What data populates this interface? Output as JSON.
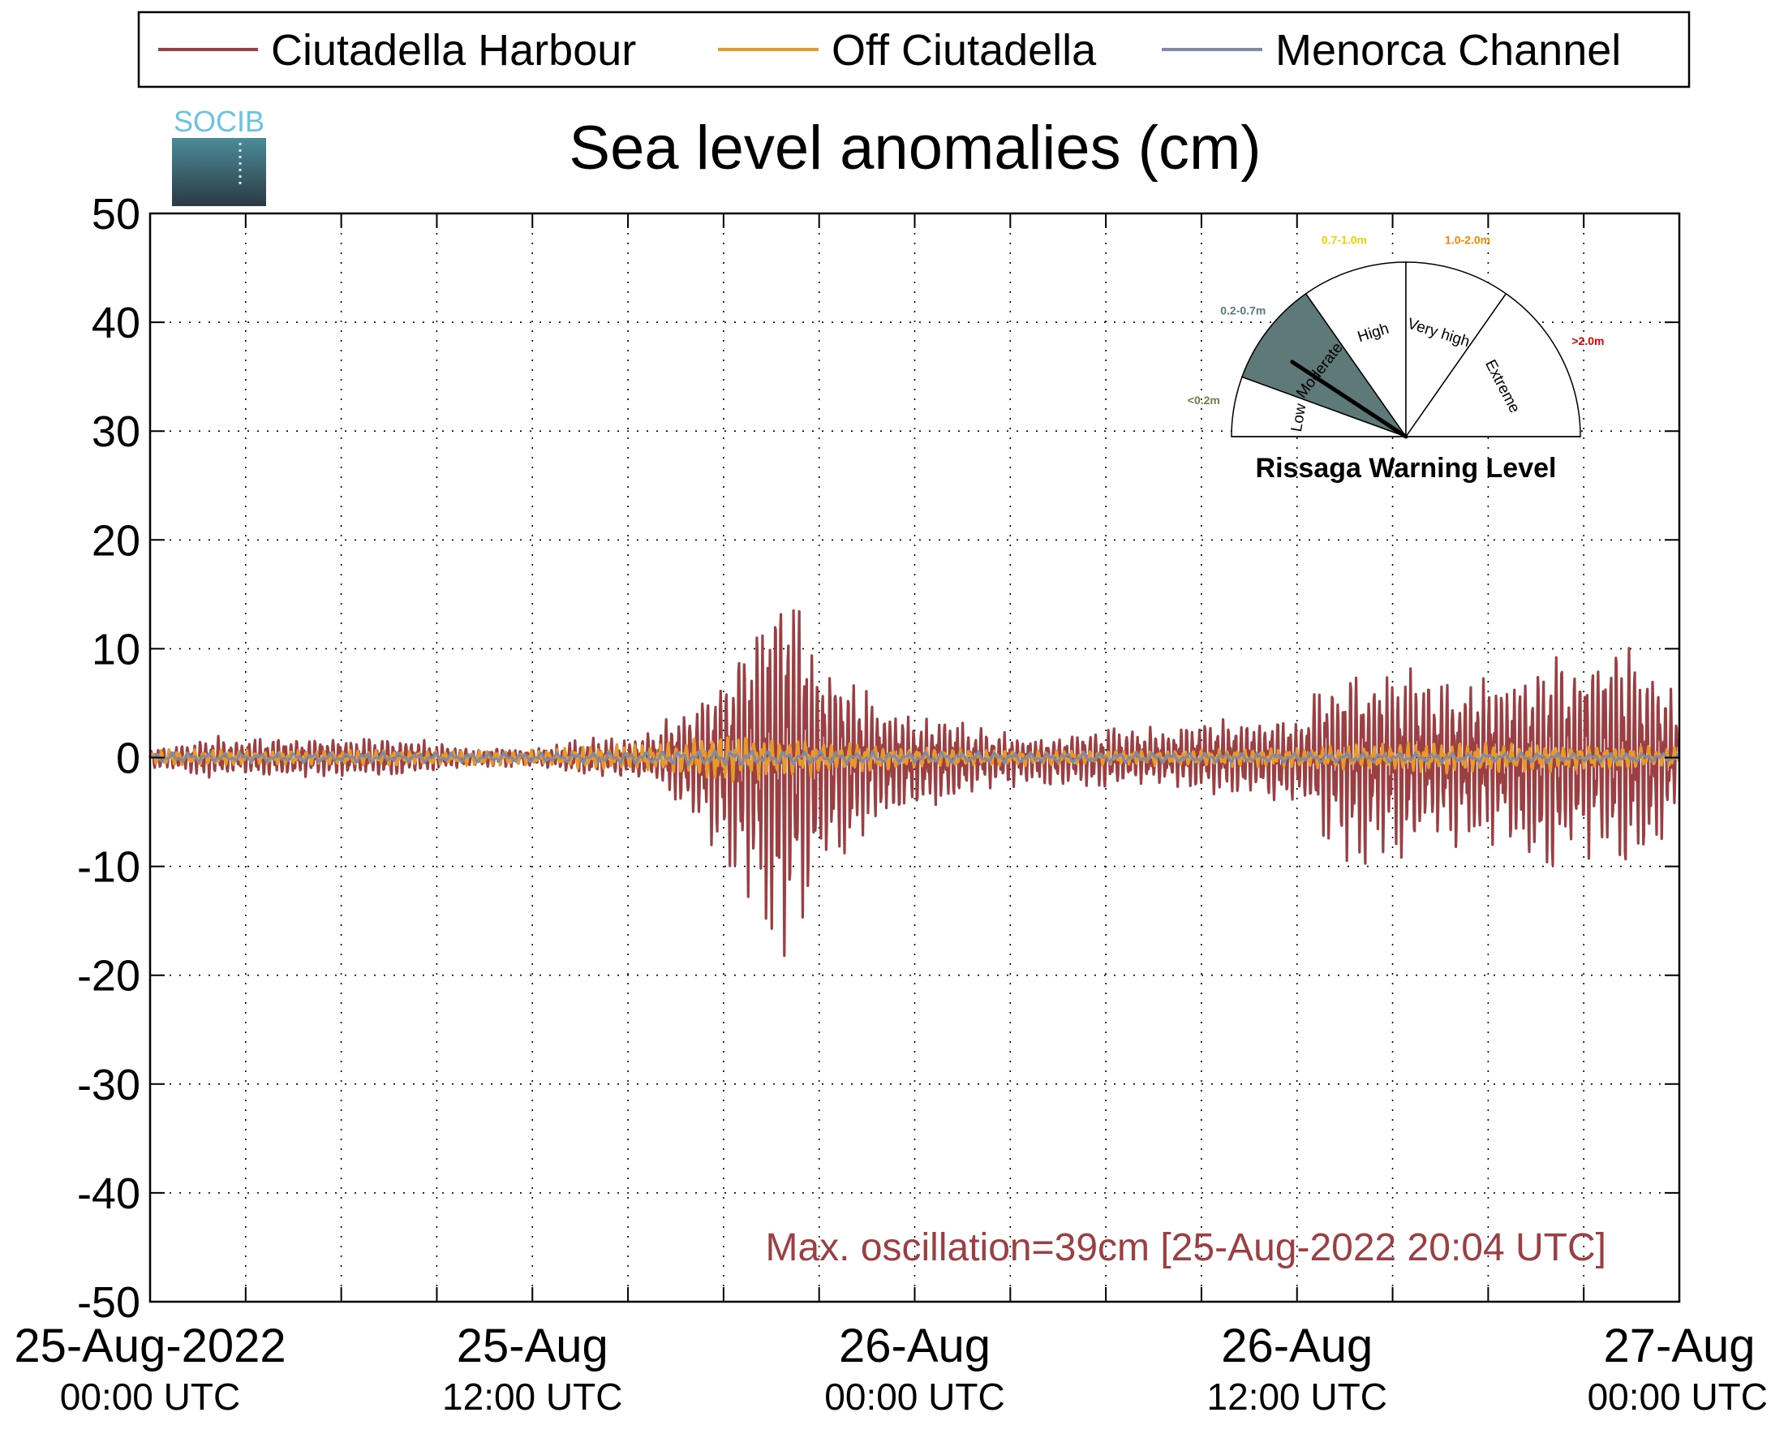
{
  "colors": {
    "harbour": "#9b3f43",
    "off": "#e69a2e",
    "channel": "#7f8aa5",
    "axis": "#000000",
    "grid": "#000000",
    "annotation": "#9b3f43",
    "logo_text": "#6cc3dd",
    "logo_top": "#4d8b98",
    "logo_bottom": "#2b3a45"
  },
  "logo": {
    "text": "SOCIB"
  },
  "chart_data": {
    "type": "line",
    "title": "Sea level anomalies (cm)",
    "xlabel": "",
    "ylabel": "",
    "ylim": [
      -50,
      50
    ],
    "yticks": [
      50,
      40,
      30,
      20,
      10,
      0,
      -10,
      -20,
      -30,
      -40,
      -50
    ],
    "yticklabels": [
      "50",
      "40",
      "30",
      "20",
      "10",
      "0",
      "-10",
      "-20",
      "-30",
      "-40",
      "-50"
    ],
    "x_unit": "hours since 25-Aug-2022 00:00 UTC",
    "xlim_hours": [
      0,
      48
    ],
    "x_gridlines_hours": [
      3,
      6,
      9,
      12,
      15,
      18,
      21,
      24,
      27,
      30,
      33,
      36,
      39,
      42,
      45
    ],
    "xticks": [
      {
        "hours": 0,
        "line1": "25-Aug-2022",
        "line2": "00:00 UTC"
      },
      {
        "hours": 12,
        "line1": "25-Aug",
        "line2": "12:00 UTC"
      },
      {
        "hours": 24,
        "line1": "26-Aug",
        "line2": "00:00 UTC"
      },
      {
        "hours": 36,
        "line1": "26-Aug",
        "line2": "12:00 UTC"
      },
      {
        "hours": 48,
        "line1": "27-Aug",
        "line2": "00:00 UTC"
      }
    ],
    "grid": true,
    "legend": {
      "placement": "top",
      "entries": [
        "Ciutadella Harbour",
        "Off Ciutadella",
        "Menorca Channel"
      ]
    },
    "series": [
      {
        "name": "Ciutadella Harbour",
        "color_key": "harbour",
        "envelope_hours": [
          0,
          2,
          4,
          6,
          8,
          10,
          12,
          14,
          15,
          16,
          17,
          18,
          19,
          20,
          21,
          22,
          23,
          24,
          25,
          26,
          28,
          30,
          32,
          34,
          36,
          37,
          38,
          40,
          42,
          44,
          45,
          46,
          47,
          48
        ],
        "envelope_upper_cm": [
          1,
          2,
          2,
          2,
          2,
          1,
          1,
          2,
          2,
          3,
          6,
          9,
          15,
          19,
          12,
          9,
          6,
          4,
          4,
          3,
          2,
          3,
          3,
          4,
          4,
          8,
          10,
          9,
          8,
          10,
          11,
          12,
          10,
          6
        ],
        "envelope_lower_cm": [
          -1,
          -2,
          -2,
          -2,
          -2,
          -1,
          -1,
          -2,
          -2,
          -3,
          -7,
          -10,
          -16,
          -20,
          -12,
          -10,
          -7,
          -6,
          -5,
          -3,
          -3,
          -3,
          -3,
          -4,
          -5,
          -9,
          -11,
          -9,
          -9,
          -12,
          -10,
          -11,
          -11,
          -5
        ]
      },
      {
        "name": "Off Ciutadella",
        "color_key": "off",
        "envelope_hours": [
          0,
          6,
          12,
          16,
          18,
          20,
          22,
          24,
          28,
          32,
          36,
          40,
          44,
          48
        ],
        "envelope_upper_cm": [
          0.8,
          0.8,
          0.8,
          1.5,
          2.5,
          2.0,
          1.5,
          1.0,
          0.8,
          0.8,
          1.0,
          1.5,
          1.5,
          1.0
        ],
        "envelope_lower_cm": [
          -0.8,
          -0.8,
          -0.8,
          -1.5,
          -2.5,
          -2.0,
          -1.5,
          -1.0,
          -0.8,
          -0.8,
          -1.0,
          -1.5,
          -1.5,
          -1.0
        ]
      },
      {
        "name": "Menorca Channel",
        "color_key": "channel",
        "envelope_hours": [
          0,
          12,
          18,
          24,
          36,
          48
        ],
        "envelope_upper_cm": [
          0.5,
          0.5,
          0.8,
          0.6,
          0.5,
          0.5
        ],
        "envelope_lower_cm": [
          -0.5,
          -0.5,
          -0.8,
          -0.6,
          -0.5,
          -0.5
        ]
      }
    ],
    "annotation": "Max. oscillation=39cm [25-Aug-2022 20:04 UTC]"
  },
  "gauge": {
    "title": "Rissaga Warning Level",
    "current_level": "Moderate",
    "current_value_m": 0.39,
    "levels": [
      {
        "name": "Low",
        "range": "<0.2m",
        "range_color": "#6e7f4a",
        "fill": "#ffffff",
        "active": false
      },
      {
        "name": "Moderate",
        "range": "0.2-0.7m",
        "range_color": "#5a7a7a",
        "fill": "#5e7a78",
        "active": true
      },
      {
        "name": "High",
        "range": "0.7-1.0m",
        "range_color": "#e8d400",
        "fill": "#ffffff",
        "active": false
      },
      {
        "name": "Very high",
        "range": "1.0-2.0m",
        "range_color": "#f08a00",
        "fill": "#ffffff",
        "active": false
      },
      {
        "name": "Extreme",
        "range": ">2.0m",
        "range_color": "#e00000",
        "fill": "#ffffff",
        "active": false
      }
    ]
  }
}
